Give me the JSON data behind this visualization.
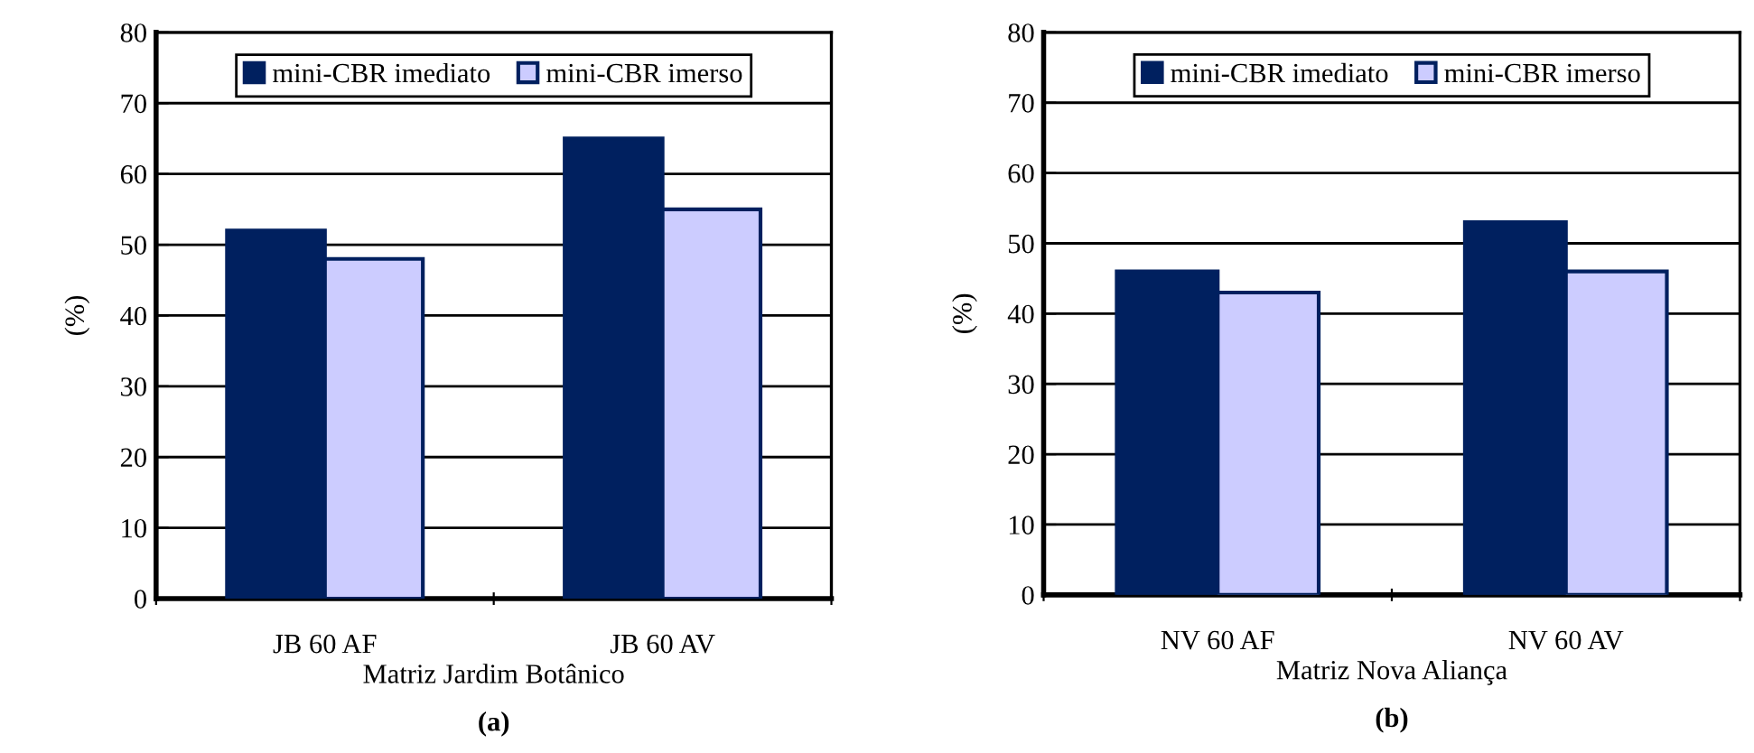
{
  "chart_data": [
    {
      "type": "bar",
      "categories": [
        "JB 60 AF",
        "JB 60 AV"
      ],
      "xlabel": "Matriz Jardim Botânico",
      "ylabel": "(%)",
      "annotations": [
        "(a)"
      ],
      "series": [
        {
          "name": "mini-CBR imediato",
          "color": "#00205f",
          "values": [
            52,
            65
          ]
        },
        {
          "name": "mini-CBR imerso",
          "color": "#ccccff",
          "values": [
            48,
            55
          ]
        }
      ],
      "ylim": [
        0,
        80
      ],
      "yticks": [
        0,
        10,
        20,
        30,
        40,
        50,
        60,
        70,
        80
      ],
      "grid": "y",
      "legend": "top"
    },
    {
      "type": "bar",
      "categories": [
        "NV 60 AF",
        "NV 60 AV"
      ],
      "xlabel": "Matriz Nova Aliança",
      "ylabel": "(%)",
      "annotations": [
        "(b)"
      ],
      "series": [
        {
          "name": "mini-CBR imediato",
          "color": "#00205f",
          "values": [
            46,
            53
          ]
        },
        {
          "name": "mini-CBR imerso",
          "color": "#ccccff",
          "values": [
            43,
            46
          ]
        }
      ],
      "ylim": [
        0,
        80
      ],
      "yticks": [
        0,
        10,
        20,
        30,
        40,
        50,
        60,
        70,
        80
      ],
      "grid": "y",
      "legend": "top"
    }
  ]
}
